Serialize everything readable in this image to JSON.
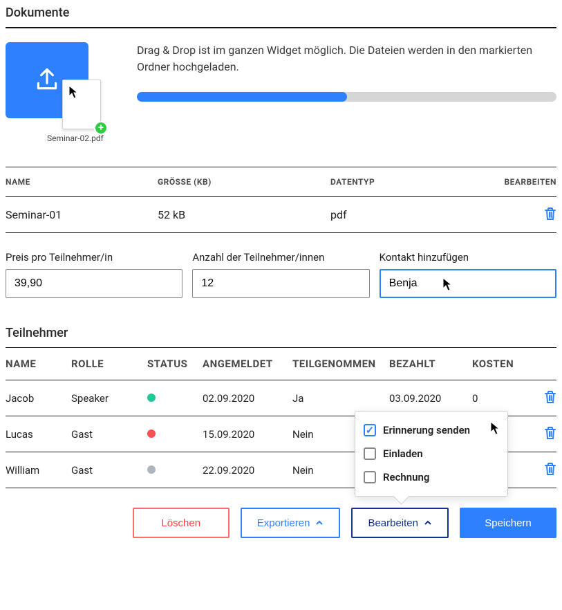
{
  "colors": {
    "primary": "#2f80ff",
    "danger": "#ff4040",
    "danger_border": "#ff6b6b",
    "edit_border": "#13328f",
    "progress_bg": "#d6d6d6",
    "plus_badge": "#2ecc40"
  },
  "documents": {
    "section_title": "Dokumente",
    "dnd_text": "Drag & Drop ist im ganzen Widget möglich. Die Dateien werden in den markierten Ordner hochgeladen.",
    "upload_thumb_label": "Seminar-02.pdf",
    "progress_percent": 50,
    "columns": {
      "name": "NAME",
      "size": "GRÖSSE (KB)",
      "type": "DATENTYP",
      "edit": "BEARBEITEN"
    },
    "rows": [
      {
        "name": "Seminar-01",
        "size": "52 kB",
        "type": "pdf"
      }
    ]
  },
  "form": {
    "price": {
      "label": "Preis pro Teilnehmer/in",
      "value": "39,90"
    },
    "count": {
      "label": "Anzahl der Teilnehmer/innen",
      "value": "12"
    },
    "contact": {
      "label": "Kontakt hinzufügen",
      "value": "Benja"
    }
  },
  "participants": {
    "section_title": "Teilnehmer",
    "columns": {
      "name": "NAME",
      "role": "ROLLE",
      "status": "STATUS",
      "registered": "ANGEMELDET",
      "attended": "TEILGENOMMEN",
      "paid": "BEZAHLT",
      "cost": "KOSTEN"
    },
    "rows": [
      {
        "name": "Jacob",
        "role": "Speaker",
        "status_color": "#20c997",
        "registered": "02.09.2020",
        "attended": "Ja",
        "paid": "03.09.2020",
        "cost": "0"
      },
      {
        "name": "Lucas",
        "role": "Gast",
        "status_color": "#fa5252",
        "registered": "15.09.2020",
        "attended": "Nein",
        "paid": "",
        "cost": ""
      },
      {
        "name": "William",
        "role": "Gast",
        "status_color": "#adb5bd",
        "registered": "22.09.2020",
        "attended": "Nein",
        "paid": "",
        "cost": ""
      }
    ],
    "popover": {
      "items": [
        {
          "label": "Erinnerung senden",
          "checked": true
        },
        {
          "label": "Einladen",
          "checked": false
        },
        {
          "label": "Rechnung",
          "checked": false
        }
      ]
    }
  },
  "actions": {
    "delete": "Löschen",
    "export": "Exportieren",
    "edit": "Bearbeiten",
    "save": "Speichern"
  }
}
